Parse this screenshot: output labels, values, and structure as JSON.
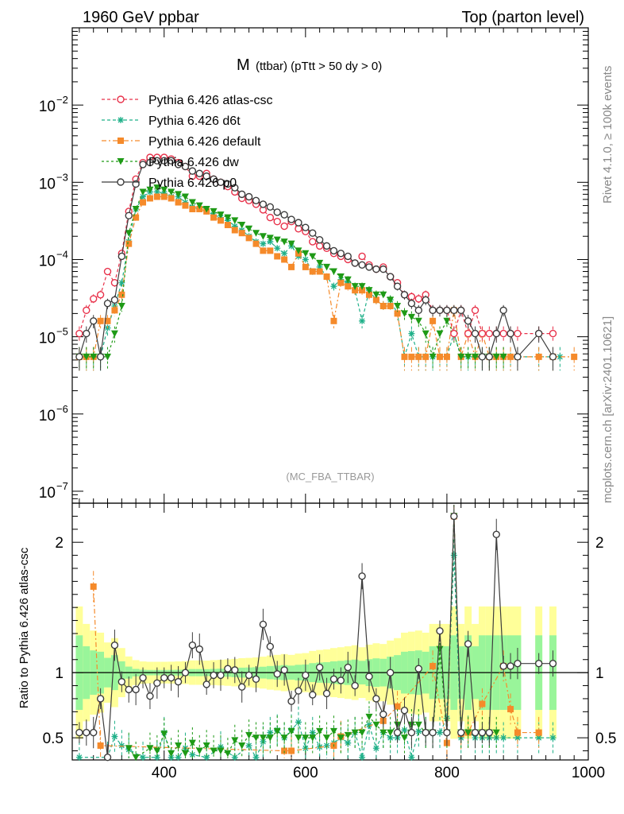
{
  "header": {
    "left": "1960 GeV ppbar",
    "right": "Top (parton level)"
  },
  "side": {
    "rivet": "Rivet 4.1.0, ≥ 100k events",
    "mcplots": "mcplots.cern.ch [arXiv:2401.10621]"
  },
  "chart_data": {
    "type": "line",
    "title_main": "M",
    "title_sub": "(ttbar) (pTtt > 50 dy > 0)",
    "watermark": "(MC_FBA_TTBAR)",
    "xlim": [
      270,
      1000
    ],
    "xticks": [
      400,
      600,
      800,
      1000
    ],
    "ylim_log": [
      7e-08,
      0.1
    ],
    "yticks": [
      {
        "v": 0.01,
        "base": "10",
        "exp": "−2"
      },
      {
        "v": 0.001,
        "base": "10",
        "exp": "−3"
      },
      {
        "v": 0.0001,
        "base": "10",
        "exp": "−4"
      },
      {
        "v": 1e-05,
        "base": "10",
        "exp": "−5"
      },
      {
        "v": 1e-06,
        "base": "10",
        "exp": "−6"
      },
      {
        "v": 1e-07,
        "base": "10",
        "exp": "−7"
      }
    ],
    "ratio": {
      "ylabel": "Ratio to Pythia 6.426 atlas-csc",
      "ylim": [
        0.33,
        2.3
      ],
      "yticks": [
        "0.5",
        "1",
        "2"
      ],
      "ytick_values": [
        0.5,
        1,
        2
      ],
      "x": [
        280,
        290,
        300,
        310,
        320,
        330,
        340,
        350,
        360,
        370,
        380,
        390,
        400,
        410,
        420,
        430,
        440,
        450,
        460,
        470,
        480,
        490,
        500,
        510,
        520,
        530,
        540,
        550,
        560,
        570,
        580,
        590,
        600,
        610,
        620,
        630,
        640,
        650,
        660,
        670,
        680,
        690,
        700,
        710,
        720,
        730,
        740,
        750,
        760,
        770,
        780,
        790,
        800,
        810,
        820,
        830,
        840,
        850,
        860,
        870,
        880,
        890,
        900,
        930,
        950
      ],
      "p0": [
        0.54,
        0.54,
        0.54,
        0.8,
        0.35,
        1.21,
        0.93,
        0.87,
        0.87,
        0.96,
        0.82,
        0.92,
        0.96,
        0.96,
        0.93,
        1.0,
        1.21,
        1.18,
        0.91,
        0.98,
        0.98,
        1.03,
        1.02,
        0.89,
        0.98,
        0.95,
        1.37,
        1.2,
        0.99,
        1.02,
        0.78,
        0.86,
        0.98,
        0.83,
        1.04,
        0.84,
        0.95,
        0.94,
        1.04,
        0.9,
        1.74,
        0.97,
        0.8,
        0.68,
        1.0,
        0.54,
        0.71,
        0.54,
        1.03,
        0.54,
        0.54,
        1.32,
        0.54,
        2.2,
        0.54,
        1.22,
        0.54,
        0.54,
        0.54,
        2.06,
        1.05,
        1.05,
        1.07,
        1.07,
        1.07
      ],
      "default": [
        null,
        null,
        1.66,
        0.44,
        null,
        null,
        null,
        null,
        null,
        null,
        null,
        null,
        null,
        null,
        null,
        null,
        null,
        null,
        null,
        null,
        null,
        null,
        null,
        null,
        null,
        null,
        null,
        null,
        null,
        0.4,
        0.4,
        null,
        null,
        null,
        null,
        null,
        0.44,
        0.51,
        null,
        null,
        null,
        null,
        null,
        0.63,
        null,
        0.74,
        null,
        null,
        null,
        null,
        1.05,
        null,
        0.46,
        2.2,
        0.53,
        0.54,
        null,
        0.76,
        null,
        null,
        1.05,
        0.72,
        0.54,
        0.54,
        null
      ],
      "d6t": [
        0.35,
        null,
        null,
        null,
        0.35,
        0.51,
        0.44,
        0.41,
        null,
        0.35,
        null,
        0.35,
        0.54,
        0.35,
        0.35,
        0.42,
        0.37,
        null,
        0.35,
        null,
        0.43,
        null,
        0.35,
        null,
        0.44,
        0.35,
        0.47,
        0.54,
        0.56,
        0.5,
        0.56,
        0.62,
        0.42,
        0.54,
        0.43,
        0.44,
        0.46,
        0.5,
        0.46,
        0.54,
        0.35,
        0.6,
        0.42,
        0.54,
        0.5,
        0.5,
        0.56,
        0.35,
        0.55,
        0.54,
        0.54,
        0.54,
        0.65,
        1.9,
        0.5,
        0.55,
        0.5,
        0.5,
        0.5,
        0.5,
        0.5,
        null,
        0.5,
        0.5,
        0.5
      ],
      "dw": [
        null,
        null,
        null,
        null,
        null,
        null,
        null,
        0.42,
        0.35,
        null,
        0.42,
        0.4,
        0.53,
        0.38,
        0.44,
        0.38,
        0.46,
        0.4,
        0.44,
        0.4,
        0.4,
        0.38,
        0.48,
        0.44,
        0.52,
        0.5,
        0.5,
        0.5,
        0.55,
        0.5,
        0.55,
        0.5,
        0.5,
        0.5,
        0.55,
        0.5,
        0.55,
        0.5,
        0.52,
        0.54,
        0.54,
        0.66,
        0.6,
        0.54,
        0.54,
        0.6,
        0.5,
        0.6,
        0.6,
        0.54,
        0.54,
        1.18,
        0.54,
        2.2,
        0.54,
        0.54,
        0.54,
        0.54,
        0.54,
        0.54,
        null,
        null,
        null,
        null,
        null
      ]
    },
    "series": [
      {
        "name": "Pythia 6.426 atlas-csc",
        "color": "#e8314a",
        "marker": "open-circle",
        "dash": "4,3",
        "x": [
          280,
          290,
          300,
          310,
          320,
          330,
          340,
          350,
          360,
          370,
          380,
          390,
          400,
          410,
          420,
          430,
          440,
          450,
          460,
          470,
          480,
          490,
          500,
          510,
          520,
          530,
          540,
          550,
          560,
          570,
          580,
          590,
          600,
          610,
          620,
          630,
          640,
          650,
          660,
          670,
          680,
          690,
          700,
          710,
          720,
          730,
          740,
          750,
          760,
          770,
          780,
          790,
          800,
          810,
          820,
          830,
          840,
          850,
          860,
          870,
          880,
          890,
          900,
          930,
          950
        ],
        "y": [
          1.1e-05,
          2.2e-05,
          3.1e-05,
          3.5e-05,
          7e-05,
          5e-05,
          0.00012,
          0.00042,
          0.0011,
          0.0018,
          0.0021,
          0.0021,
          0.0021,
          0.002,
          0.0018,
          0.0016,
          0.0012,
          0.0012,
          0.0013,
          0.0011,
          0.001,
          0.00088,
          0.00075,
          0.00062,
          0.00058,
          0.00052,
          0.00044,
          0.00035,
          0.00031,
          0.00027,
          0.00031,
          0.00025,
          0.00023,
          0.00017,
          0.00015,
          0.00014,
          0.00012,
          0.00011,
          0.0001,
          9e-05,
          0.00011,
          8.5e-05,
          7.5e-05,
          8e-05,
          6e-05,
          5e-05,
          3.5e-05,
          3.3e-05,
          3.1e-05,
          3.5e-05,
          2.2e-05,
          2.2e-05,
          2.2e-05,
          1.1e-05,
          2.2e-05,
          1.1e-05,
          2.2e-05,
          1.1e-05,
          1.1e-05,
          1.1e-05,
          1.1e-05,
          1.1e-05,
          1.1e-05,
          1.1e-05,
          1.1e-05
        ]
      },
      {
        "name": "Pythia 6.426 d6t",
        "color": "#1fb089",
        "marker": "star",
        "dash": "4,3",
        "x": [
          280,
          290,
          300,
          310,
          320,
          330,
          340,
          350,
          360,
          370,
          380,
          390,
          400,
          410,
          420,
          430,
          440,
          450,
          460,
          470,
          480,
          490,
          500,
          510,
          520,
          530,
          540,
          550,
          560,
          570,
          580,
          590,
          600,
          610,
          620,
          630,
          640,
          650,
          660,
          670,
          680,
          690,
          700,
          710,
          720,
          730,
          740,
          750,
          760,
          770,
          780,
          790,
          800,
          810,
          820,
          830,
          840,
          850,
          860,
          870,
          880,
          890,
          900,
          930,
          950,
          960
        ],
        "y": [
          5.5e-06,
          5.5e-06,
          5.5e-06,
          5.5e-06,
          1.3e-05,
          2.5e-05,
          5e-05,
          0.00017,
          0.00045,
          0.00065,
          0.00075,
          0.00075,
          0.00072,
          0.00065,
          0.00065,
          0.00055,
          0.00048,
          0.00045,
          0.00042,
          0.00038,
          0.00035,
          0.00032,
          0.00027,
          0.00024,
          0.0002,
          0.00017,
          0.00016,
          0.00017,
          0.00014,
          0.00012,
          0.00015,
          0.00011,
          0.0001,
          7e-05,
          8e-05,
          6e-05,
          4.5e-05,
          5.5e-05,
          5e-05,
          4e-05,
          1.6e-05,
          4e-05,
          3e-05,
          2.5e-05,
          3e-05,
          2e-05,
          5.5e-06,
          1.1e-05,
          5.5e-06,
          5.5e-06,
          5.5e-06,
          5.5e-06,
          5.5e-06,
          1.1e-05,
          5.5e-06,
          5.5e-06,
          5.5e-06,
          5.5e-06,
          5.5e-06,
          5.5e-06,
          5.5e-06,
          5.5e-06,
          5.5e-06,
          5.5e-06,
          5.5e-06,
          5.5e-06
        ]
      },
      {
        "name": "Pythia 6.426 default",
        "color": "#f58a2a",
        "marker": "square",
        "dash": "6,3,2,3",
        "x": [
          280,
          290,
          300,
          310,
          320,
          330,
          340,
          350,
          360,
          370,
          380,
          390,
          400,
          410,
          420,
          430,
          440,
          450,
          460,
          470,
          480,
          490,
          500,
          510,
          520,
          530,
          540,
          550,
          560,
          570,
          580,
          590,
          600,
          610,
          620,
          630,
          640,
          650,
          660,
          670,
          680,
          690,
          700,
          710,
          720,
          730,
          740,
          750,
          760,
          770,
          780,
          790,
          800,
          810,
          820,
          830,
          840,
          850,
          860,
          870,
          880,
          890,
          900,
          930,
          950,
          980
        ],
        "y": [
          5.5e-06,
          5.5e-06,
          5.5e-06,
          1.6e-05,
          1.6e-05,
          2.2e-05,
          3.5e-05,
          0.00016,
          0.00035,
          0.00055,
          0.00062,
          0.00065,
          0.00065,
          0.00062,
          0.00055,
          0.0005,
          0.00045,
          0.00045,
          0.00042,
          0.00035,
          0.00032,
          0.00028,
          0.00024,
          0.00022,
          0.00019,
          0.00016,
          0.00013,
          0.00013,
          0.00011,
          0.0001,
          8e-05,
          0.00012,
          8e-05,
          7e-05,
          7e-05,
          6e-05,
          1.6e-05,
          5e-05,
          4.5e-05,
          4e-05,
          4e-05,
          3.5e-05,
          3e-05,
          2.5e-05,
          2.5e-05,
          2e-05,
          5.5e-06,
          5.5e-06,
          5.5e-06,
          5.5e-06,
          1.6e-05,
          5.5e-06,
          5.5e-06,
          2.2e-05,
          5.5e-06,
          1.1e-05,
          5.5e-06,
          1.1e-05,
          5.5e-06,
          5.5e-06,
          5.5e-06,
          5.5e-06,
          5.5e-06,
          5.5e-06,
          5.5e-06,
          5.5e-06
        ]
      },
      {
        "name": "Pythia 6.426 dw",
        "color": "#1e9a16",
        "marker": "down-triangle",
        "dash": "3,3",
        "x": [
          280,
          290,
          300,
          310,
          320,
          330,
          340,
          350,
          360,
          370,
          380,
          390,
          400,
          410,
          420,
          430,
          440,
          450,
          460,
          470,
          480,
          490,
          500,
          510,
          520,
          530,
          540,
          550,
          560,
          570,
          580,
          590,
          600,
          610,
          620,
          630,
          640,
          650,
          660,
          670,
          680,
          690,
          700,
          710,
          720,
          730,
          740,
          750,
          760,
          770,
          780,
          790,
          800,
          810,
          820,
          830,
          840,
          850,
          860,
          870,
          880
        ],
        "y": [
          5.5e-06,
          5.5e-06,
          5.5e-06,
          5.5e-06,
          5.5e-06,
          1.1e-05,
          2.5e-05,
          0.00022,
          0.00045,
          0.00075,
          0.0008,
          0.00085,
          0.0008,
          0.00075,
          0.0007,
          0.00065,
          0.00055,
          0.0005,
          0.00045,
          0.00042,
          0.00038,
          0.00035,
          0.00032,
          0.00028,
          0.00025,
          0.00022,
          0.0002,
          0.00019,
          0.00018,
          0.00017,
          0.00016,
          0.00013,
          0.00012,
          0.00011,
          9e-05,
          8e-05,
          7e-05,
          6e-05,
          5.5e-05,
          4.5e-05,
          4.5e-05,
          4e-05,
          3.5e-05,
          3.5e-05,
          3e-05,
          2.5e-05,
          2e-05,
          1.8e-05,
          1.6e-05,
          1.1e-05,
          5.5e-06,
          1.1e-05,
          1.6e-05,
          1.1e-05,
          5.5e-06,
          5.5e-06,
          5.5e-06,
          5.5e-06,
          5.5e-06,
          5.5e-06,
          5.5e-06
        ]
      },
      {
        "name": "Pythia 6.426 p0",
        "color": "#3c3c3c",
        "marker": "open-circle",
        "dash": "",
        "x": [
          280,
          290,
          300,
          310,
          320,
          330,
          340,
          350,
          360,
          370,
          380,
          390,
          400,
          410,
          420,
          430,
          440,
          450,
          460,
          470,
          480,
          490,
          500,
          510,
          520,
          530,
          540,
          550,
          560,
          570,
          580,
          590,
          600,
          610,
          620,
          630,
          640,
          650,
          660,
          670,
          680,
          690,
          700,
          710,
          720,
          730,
          740,
          750,
          760,
          770,
          780,
          790,
          800,
          810,
          820,
          830,
          840,
          850,
          860,
          870,
          880,
          890,
          900,
          930,
          950
        ],
        "y": [
          5.5e-06,
          1.1e-05,
          1.6e-05,
          5.5e-06,
          2.7e-05,
          3e-05,
          0.00011,
          0.00037,
          0.00095,
          0.0017,
          0.0018,
          0.0019,
          0.0019,
          0.0019,
          0.0017,
          0.0016,
          0.0014,
          0.0013,
          0.0012,
          0.0011,
          0.001,
          0.00095,
          0.00085,
          0.0007,
          0.00065,
          0.00058,
          0.00052,
          0.00048,
          0.00041,
          0.00038,
          0.00033,
          0.0003,
          0.00026,
          0.00022,
          0.00018,
          0.00015,
          0.00013,
          0.00012,
          0.00011,
          9e-05,
          8.5e-05,
          8e-05,
          7.5e-05,
          7.5e-05,
          6e-05,
          4.5e-05,
          3.5e-05,
          2.7e-05,
          2.2e-05,
          3e-05,
          2.2e-05,
          2.2e-05,
          2.2e-05,
          2.2e-05,
          2.2e-05,
          1.6e-05,
          1.1e-05,
          5.5e-06,
          5.5e-06,
          1.1e-05,
          2.2e-05,
          1.1e-05,
          5.5e-06,
          1.1e-05,
          5.5e-06
        ]
      }
    ]
  }
}
